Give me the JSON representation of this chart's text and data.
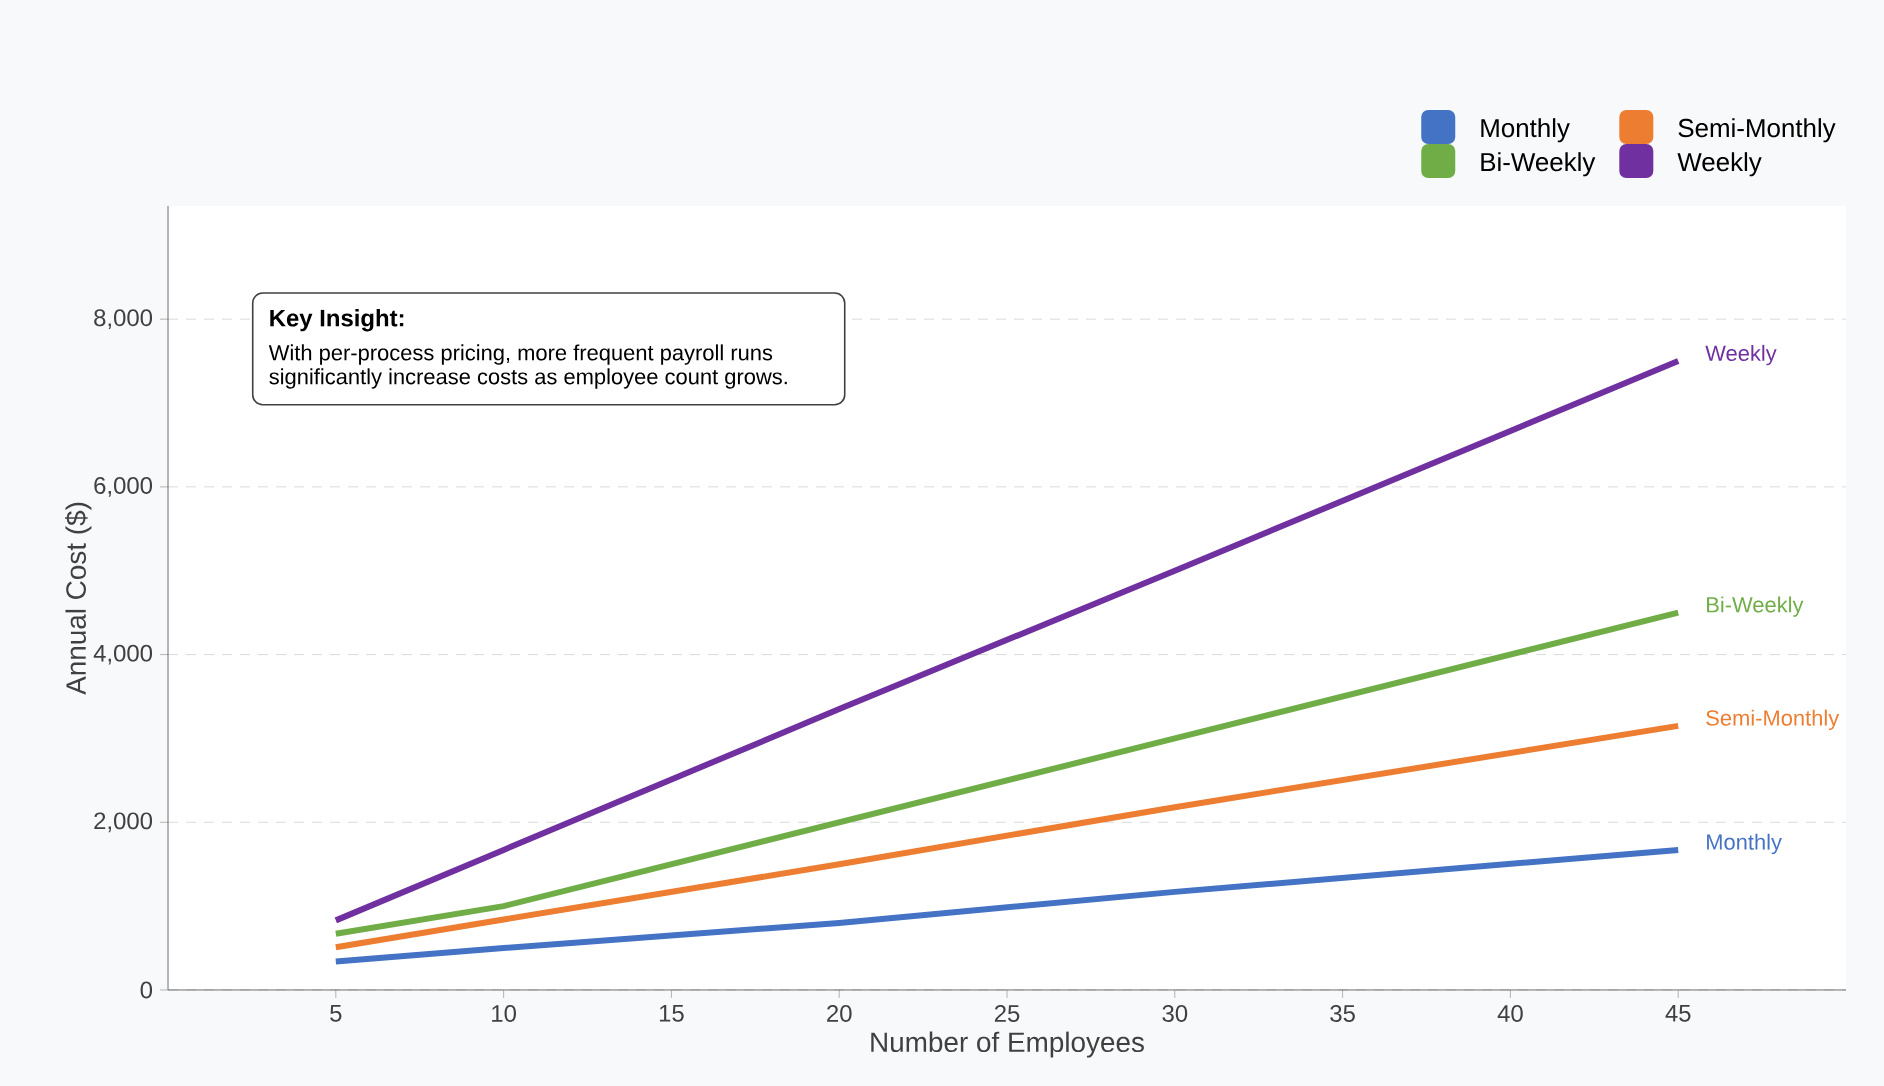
{
  "chart_data": {
    "type": "line",
    "xlabel": "Number of Employees",
    "ylabel": "Annual Cost ($)",
    "x": [
      5,
      10,
      20,
      30,
      45
    ],
    "series": [
      {
        "name": "Monthly",
        "color": "#4472c4",
        "values": [
          340,
          500,
          800,
          1170,
          1670
        ]
      },
      {
        "name": "Semi-Monthly",
        "color": "#ed7d31",
        "values": [
          510,
          840,
          1500,
          2180,
          3150
        ]
      },
      {
        "name": "Bi-Weekly",
        "color": "#70ad47",
        "values": [
          670,
          1000,
          2000,
          3000,
          4500
        ]
      },
      {
        "name": "Weekly",
        "color": "#7030a0",
        "values": [
          830,
          1670,
          3350,
          5000,
          7500
        ]
      }
    ],
    "xlim": [
      0,
      50
    ],
    "ylim": [
      0,
      9350
    ],
    "xticks": [
      5,
      10,
      15,
      20,
      25,
      30,
      35,
      40,
      45
    ],
    "yticks": [
      0,
      {
        "value": 2000,
        "label": "2,000"
      },
      {
        "value": 4000,
        "label": "4,000"
      },
      {
        "value": 6000,
        "label": "6,000"
      },
      {
        "value": 8000,
        "label": "8,000"
      }
    ],
    "grid": "y",
    "legend": "top right",
    "marker": "none",
    "line_style": "solid",
    "annotations": [
      "Key Insight:",
      "With per-process pricing, more frequent payroll runs significantly increase costs as employee count grows."
    ]
  }
}
